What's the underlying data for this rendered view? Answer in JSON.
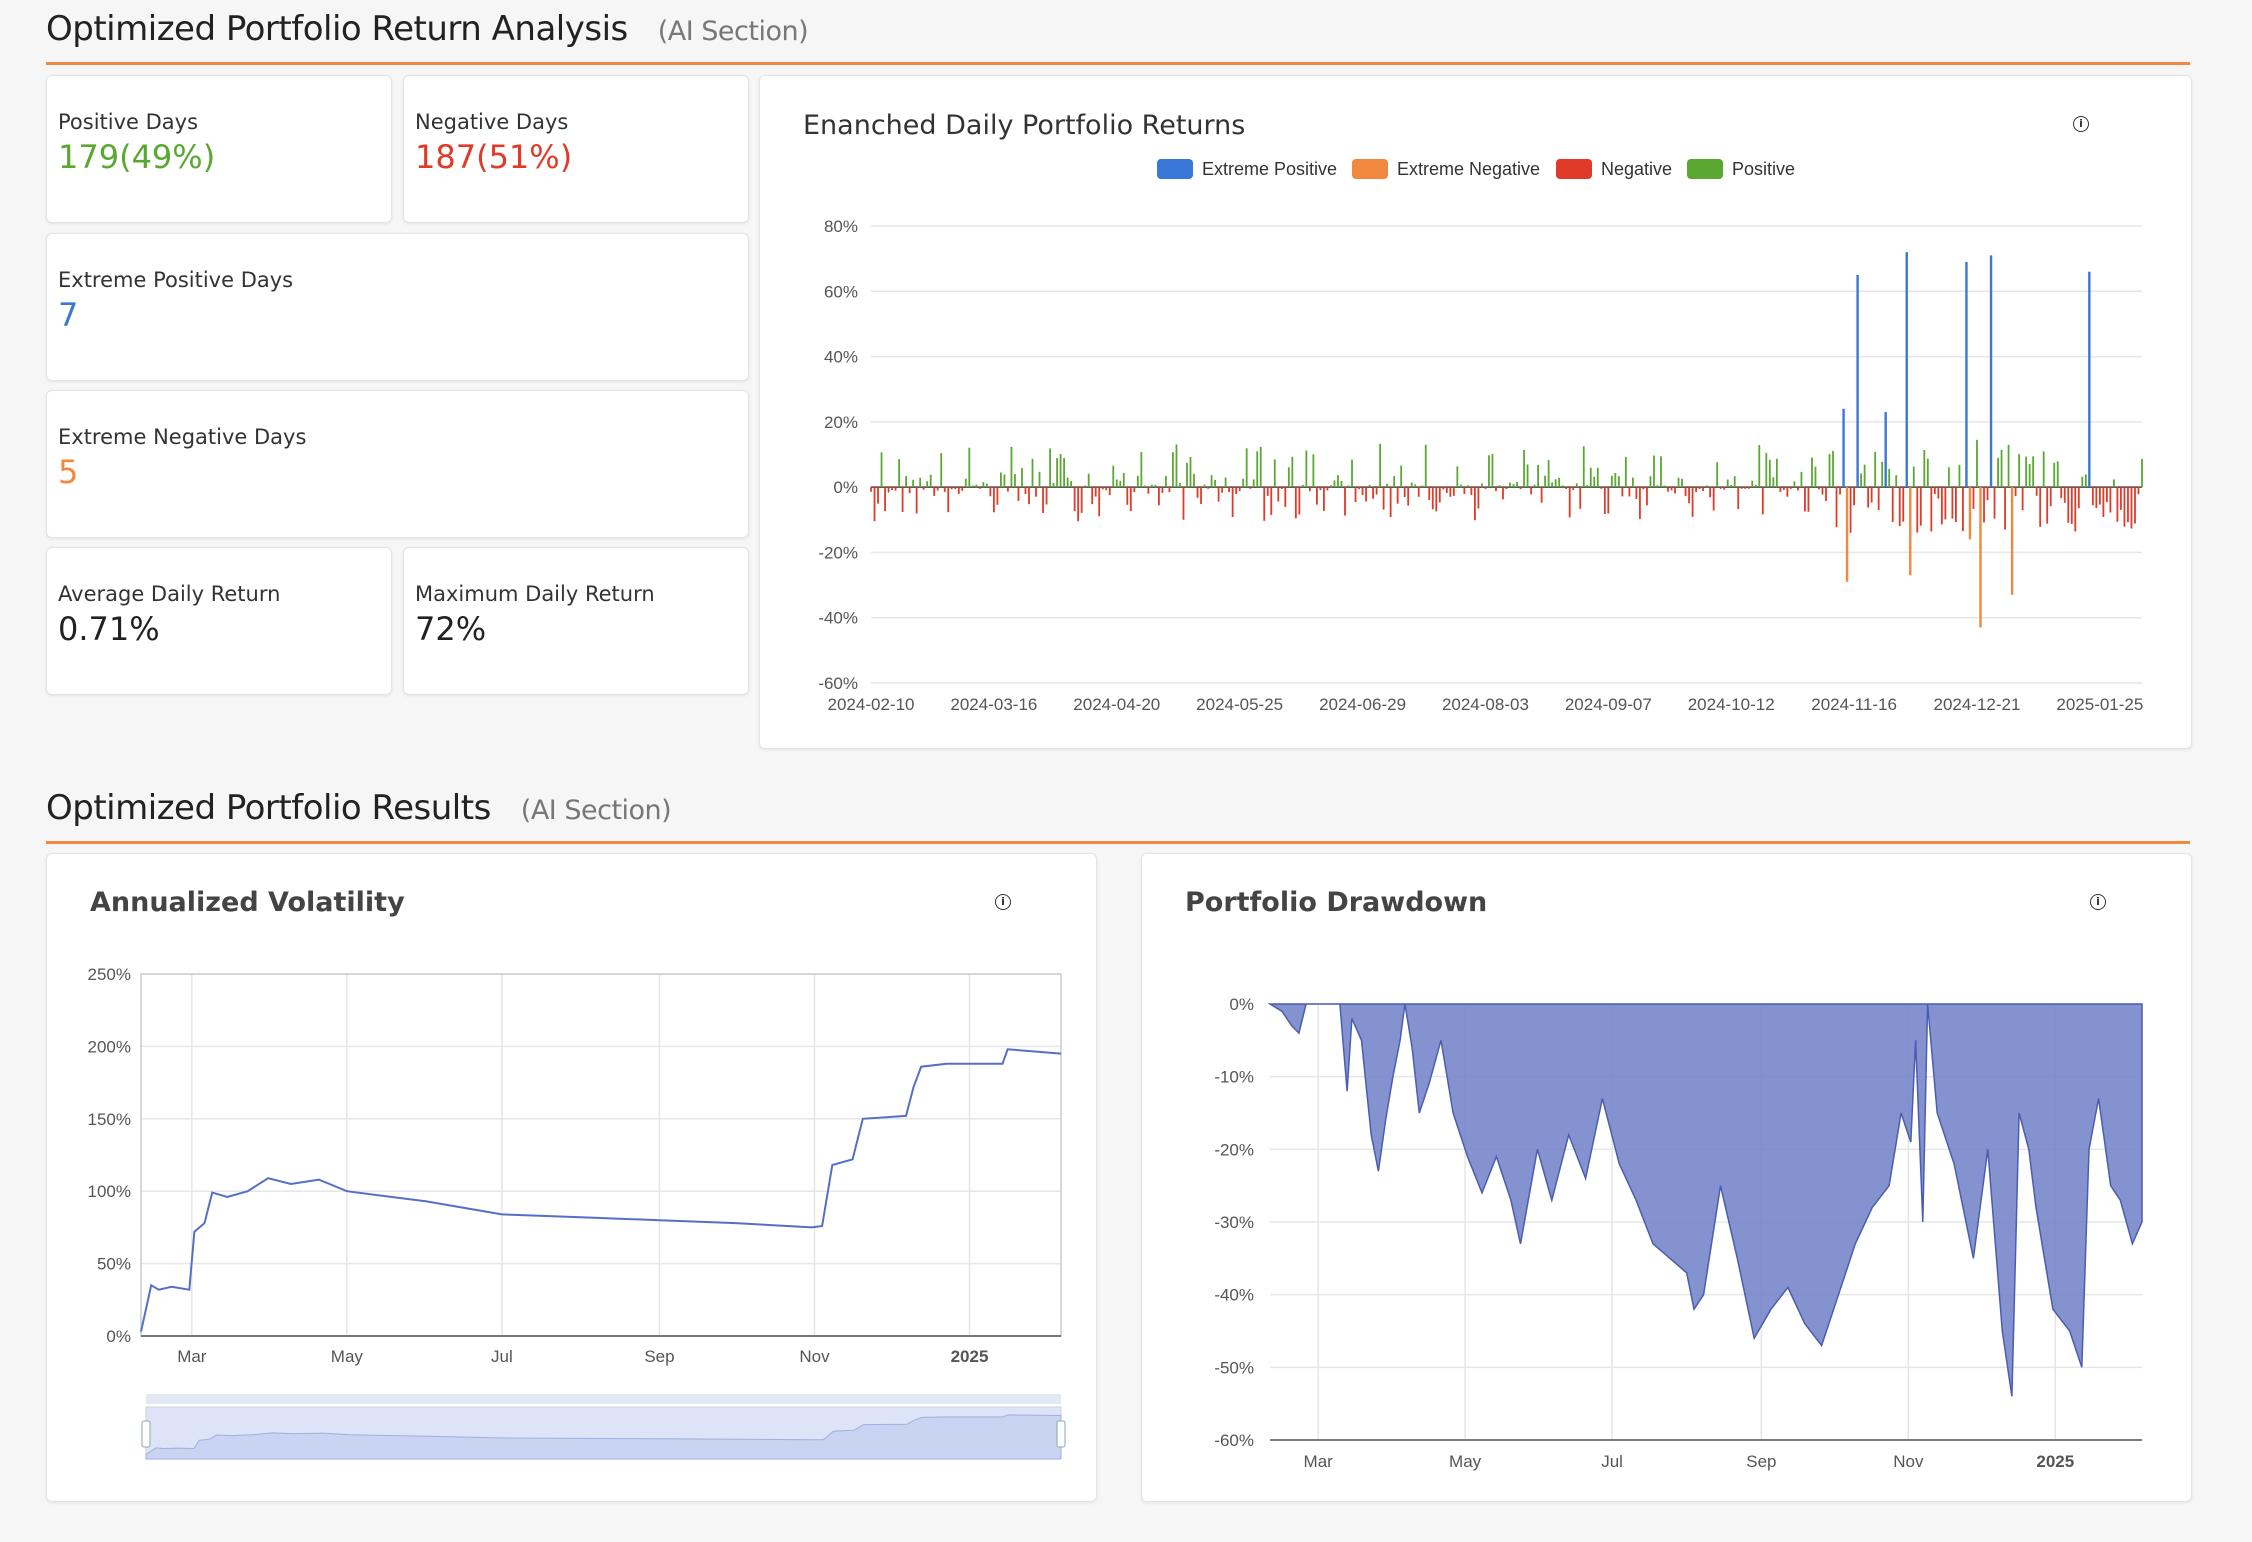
{
  "section1": {
    "title": "Optimized Portfolio Return Analysis",
    "subtitle": "(AI Section)"
  },
  "stats": {
    "positive_days": {
      "label": "Positive Days",
      "value": "179(49%)"
    },
    "negative_days": {
      "label": "Negative Days",
      "value": "187(51%)"
    },
    "extreme_positive_days": {
      "label": "Extreme Positive Days",
      "value": "7"
    },
    "extreme_negative_days": {
      "label": "Extreme Negative Days",
      "value": "5"
    },
    "average_daily_return": {
      "label": "Average Daily Return",
      "value": "0.71%"
    },
    "maximum_daily_return": {
      "label": "Maximum Daily Return",
      "value": "72%"
    }
  },
  "colors": {
    "positive": "#5aa832",
    "negative": "#e03a28",
    "extreme_positive": "#3a78d8",
    "extreme_negative": "#f0883e",
    "area": "#6f80c8",
    "accent": "#f0883e"
  },
  "section2": {
    "title": "Optimized Portfolio Results",
    "subtitle": "(AI Section)"
  },
  "chart_data": [
    {
      "type": "bar",
      "title": "Enanched Daily Portfolio Returns",
      "legend": [
        "Extreme Positive",
        "Extreme Negative",
        "Negative",
        "Positive"
      ],
      "legend_position": "top-center",
      "grid": true,
      "ylim": [
        -60,
        80
      ],
      "yticks": [
        "80%",
        "60%",
        "40%",
        "20%",
        "0%",
        "-20%",
        "-40%",
        "-60%"
      ],
      "xticks": [
        "2024-02-10",
        "2024-03-16",
        "2024-04-20",
        "2024-05-25",
        "2024-06-29",
        "2024-08-03",
        "2024-09-07",
        "2024-10-12",
        "2024-11-16",
        "2024-12-21",
        "2025-01-25"
      ],
      "x_start": "2024-02-10",
      "x_end": "2025-02-06",
      "extreme_positive": [
        {
          "date": "2024-11-13",
          "value": 24
        },
        {
          "date": "2024-11-17",
          "value": 65
        },
        {
          "date": "2024-11-25",
          "value": 23
        },
        {
          "date": "2024-12-01",
          "value": 72
        },
        {
          "date": "2024-12-18",
          "value": 69
        },
        {
          "date": "2024-12-25",
          "value": 71
        },
        {
          "date": "2025-01-22",
          "value": 66
        }
      ],
      "extreme_negative": [
        {
          "date": "2024-11-14",
          "value": -29
        },
        {
          "date": "2024-12-02",
          "value": -27
        },
        {
          "date": "2024-12-22",
          "value": -43
        },
        {
          "date": "2024-12-31",
          "value": -33
        },
        {
          "date": "2024-12-19",
          "value": -16
        }
      ]
    },
    {
      "type": "line",
      "title": "Annualized Volatility",
      "grid": true,
      "ylim": [
        0,
        250
      ],
      "yticks": [
        "250%",
        "200%",
        "150%",
        "100%",
        "50%",
        "0%"
      ],
      "xticks": [
        "Mar",
        "May",
        "Jul",
        "Sep",
        "Nov",
        "2025"
      ],
      "x_start": "2024-02-10",
      "x_end": "2025-02-06",
      "points": [
        [
          "2024-02-10",
          3
        ],
        [
          "2024-02-14",
          35
        ],
        [
          "2024-02-17",
          32
        ],
        [
          "2024-02-22",
          34
        ],
        [
          "2024-02-29",
          32
        ],
        [
          "2024-03-02",
          72
        ],
        [
          "2024-03-06",
          78
        ],
        [
          "2024-03-09",
          99
        ],
        [
          "2024-03-15",
          96
        ],
        [
          "2024-03-23",
          100
        ],
        [
          "2024-03-31",
          109
        ],
        [
          "2024-04-09",
          105
        ],
        [
          "2024-04-20",
          108
        ],
        [
          "2024-05-01",
          100
        ],
        [
          "2024-06-01",
          93
        ],
        [
          "2024-07-01",
          84
        ],
        [
          "2024-08-01",
          82
        ],
        [
          "2024-09-01",
          80
        ],
        [
          "2024-10-01",
          78
        ],
        [
          "2024-10-31",
          75
        ],
        [
          "2024-11-04",
          76
        ],
        [
          "2024-11-08",
          118
        ],
        [
          "2024-11-16",
          122
        ],
        [
          "2024-11-20",
          150
        ],
        [
          "2024-12-07",
          152
        ],
        [
          "2024-12-10",
          172
        ],
        [
          "2024-12-13",
          186
        ],
        [
          "2024-12-23",
          188
        ],
        [
          "2025-01-14",
          188
        ],
        [
          "2025-01-16",
          198
        ],
        [
          "2025-02-06",
          195
        ]
      ]
    },
    {
      "type": "area",
      "title": "Portfolio Drawdown",
      "grid": true,
      "ylim": [
        -60,
        0
      ],
      "yticks": [
        "0%",
        "-10%",
        "-20%",
        "-30%",
        "-40%",
        "-50%",
        "-60%"
      ],
      "xticks": [
        "Mar",
        "May",
        "Jul",
        "Sep",
        "Nov",
        "2025"
      ],
      "x_start": "2024-02-10",
      "x_end": "2025-02-06",
      "points": [
        [
          "2024-02-10",
          0
        ],
        [
          "2024-02-15",
          -1
        ],
        [
          "2024-02-19",
          -3
        ],
        [
          "2024-02-22",
          -4
        ],
        [
          "2024-02-25",
          0
        ],
        [
          "2024-03-10",
          0
        ],
        [
          "2024-03-13",
          -12
        ],
        [
          "2024-03-15",
          -2
        ],
        [
          "2024-03-19",
          -5
        ],
        [
          "2024-03-23",
          -18
        ],
        [
          "2024-03-26",
          -23
        ],
        [
          "2024-03-29",
          -16
        ],
        [
          "2024-04-01",
          -10
        ],
        [
          "2024-04-04",
          -5
        ],
        [
          "2024-04-06",
          0
        ],
        [
          "2024-04-09",
          -6
        ],
        [
          "2024-04-12",
          -15
        ],
        [
          "2024-04-16",
          -11
        ],
        [
          "2024-04-21",
          -5
        ],
        [
          "2024-04-26",
          -15
        ],
        [
          "2024-05-02",
          -21
        ],
        [
          "2024-05-08",
          -26
        ],
        [
          "2024-05-14",
          -21
        ],
        [
          "2024-05-20",
          -27
        ],
        [
          "2024-05-24",
          -33
        ],
        [
          "2024-05-31",
          -20
        ],
        [
          "2024-06-06",
          -27
        ],
        [
          "2024-06-13",
          -18
        ],
        [
          "2024-06-20",
          -24
        ],
        [
          "2024-06-27",
          -13
        ],
        [
          "2024-07-04",
          -22
        ],
        [
          "2024-07-11",
          -27
        ],
        [
          "2024-07-18",
          -33
        ],
        [
          "2024-07-25",
          -35
        ],
        [
          "2024-08-01",
          -37
        ],
        [
          "2024-08-04",
          -42
        ],
        [
          "2024-08-08",
          -40
        ],
        [
          "2024-08-15",
          -25
        ],
        [
          "2024-08-22",
          -35
        ],
        [
          "2024-08-29",
          -46
        ],
        [
          "2024-09-05",
          -42
        ],
        [
          "2024-09-12",
          -39
        ],
        [
          "2024-09-19",
          -44
        ],
        [
          "2024-09-26",
          -47
        ],
        [
          "2024-10-03",
          -40
        ],
        [
          "2024-10-10",
          -33
        ],
        [
          "2024-10-17",
          -28
        ],
        [
          "2024-10-24",
          -25
        ],
        [
          "2024-10-29",
          -15
        ],
        [
          "2024-11-02",
          -19
        ],
        [
          "2024-11-04",
          -5
        ],
        [
          "2024-11-07",
          -30
        ],
        [
          "2024-11-09",
          0
        ],
        [
          "2024-11-13",
          -15
        ],
        [
          "2024-11-20",
          -22
        ],
        [
          "2024-11-28",
          -35
        ],
        [
          "2024-12-04",
          -20
        ],
        [
          "2024-12-10",
          -45
        ],
        [
          "2024-12-14",
          -54
        ],
        [
          "2024-12-17",
          -15
        ],
        [
          "2024-12-21",
          -20
        ],
        [
          "2024-12-24",
          -28
        ],
        [
          "2024-12-31",
          -42
        ],
        [
          "2025-01-07",
          -45
        ],
        [
          "2025-01-12",
          -50
        ],
        [
          "2025-01-15",
          -20
        ],
        [
          "2025-01-19",
          -13
        ],
        [
          "2025-01-24",
          -25
        ],
        [
          "2025-01-28",
          -27
        ],
        [
          "2025-02-02",
          -33
        ],
        [
          "2025-02-06",
          -30
        ]
      ]
    }
  ]
}
